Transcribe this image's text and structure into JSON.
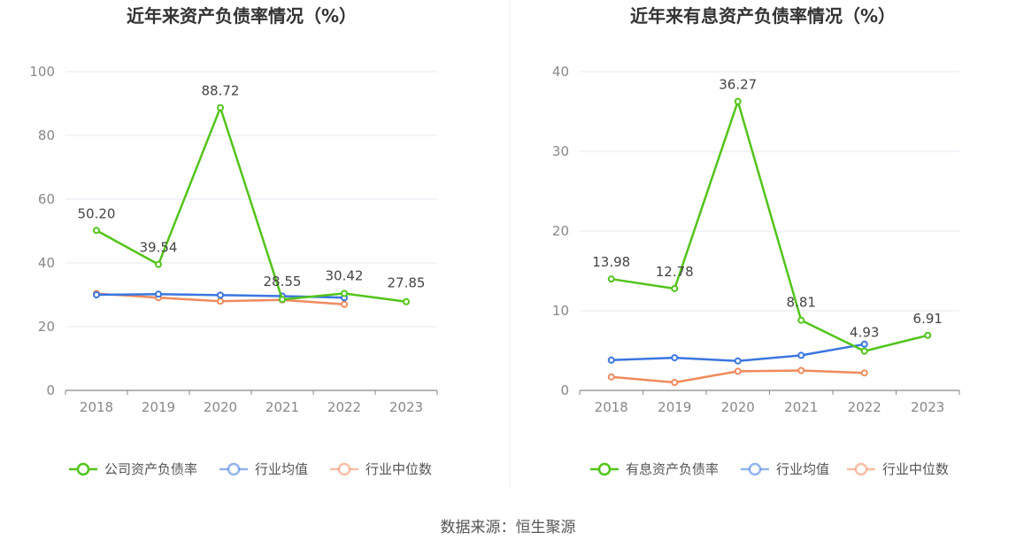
{
  "source": "数据来源：恒生聚源",
  "chart_data": [
    {
      "type": "line",
      "title": "近年来资产负债率情况（%）",
      "x": [
        "2018",
        "2019",
        "2020",
        "2021",
        "2022",
        "2023"
      ],
      "ylim": [
        0,
        100
      ],
      "yticks": [
        0,
        20,
        40,
        60,
        80,
        100
      ],
      "grid": true,
      "legend_position": "bottom",
      "series": [
        {
          "name": "公司资产负债率",
          "color": "#52c41a",
          "values": [
            50.2,
            39.54,
            88.72,
            28.55,
            30.42,
            27.85
          ],
          "labels": [
            "50.20",
            "39.54",
            "88.72",
            "28.55",
            "30.42",
            "27.85"
          ]
        },
        {
          "name": "行业均值",
          "color": "#3a76e0",
          "values": [
            30.0,
            30.2,
            29.9,
            29.6,
            29.1,
            null
          ]
        },
        {
          "name": "行业中位数",
          "color": "#f08a5d",
          "values": [
            30.4,
            29.1,
            28.0,
            28.4,
            27.0,
            null
          ]
        }
      ]
    },
    {
      "type": "line",
      "title": "近年来有息资产负债率情况（%）",
      "x": [
        "2018",
        "2019",
        "2020",
        "2021",
        "2022",
        "2023"
      ],
      "ylim": [
        0,
        40
      ],
      "yticks": [
        0,
        10,
        20,
        30,
        40
      ],
      "grid": true,
      "legend_position": "bottom",
      "series": [
        {
          "name": "有息资产负债率",
          "color": "#52c41a",
          "values": [
            13.98,
            12.78,
            36.27,
            8.81,
            4.93,
            6.91
          ],
          "labels": [
            "13.98",
            "12.78",
            "36.27",
            "8.81",
            "4.93",
            "6.91"
          ]
        },
        {
          "name": "行业均值",
          "color": "#3a76e0",
          "values": [
            3.8,
            4.1,
            3.7,
            4.4,
            5.8,
            null
          ]
        },
        {
          "name": "行业中位数",
          "color": "#f08a5d",
          "values": [
            1.7,
            1.0,
            2.4,
            2.5,
            2.2,
            null
          ]
        }
      ]
    }
  ]
}
